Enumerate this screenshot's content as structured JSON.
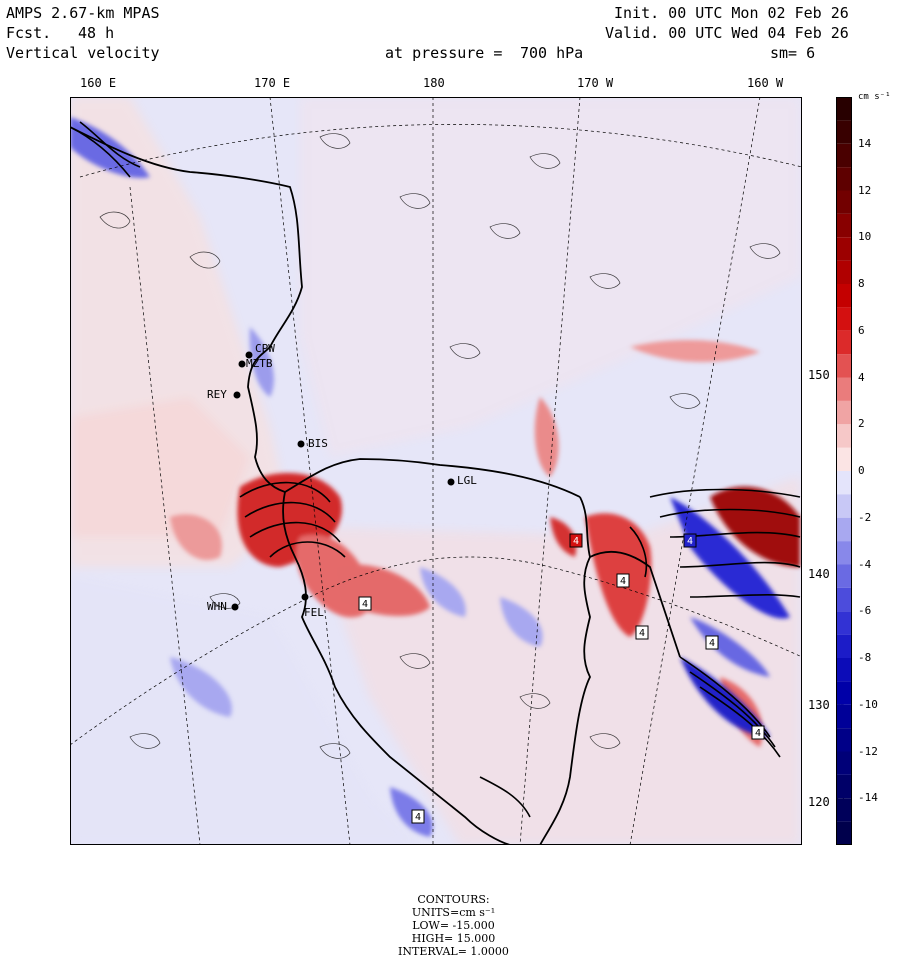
{
  "header": {
    "model": "AMPS 2.67-km MPAS",
    "fcst_label": "Fcst.",
    "fcst_value": "48 h",
    "field": "Vertical velocity",
    "level_label": "at pressure =",
    "level_value": "700 hPa",
    "init": "Init. 00 UTC Mon 02 Feb 26",
    "valid": "Valid. 00 UTC Wed 04 Feb 26",
    "smooth": "sm= 6"
  },
  "longitude_labels": [
    "160 E",
    "170 E",
    "180",
    "170 W",
    "160 W"
  ],
  "latitude_labels": [
    "150 W",
    "140 W",
    "130 W",
    "120 W"
  ],
  "stations": [
    {
      "id": "CPW"
    },
    {
      "id": "MZTB"
    },
    {
      "id": "REY"
    },
    {
      "id": "BIS"
    },
    {
      "id": "LGL"
    },
    {
      "id": "WHN"
    },
    {
      "id": "FEL"
    }
  ],
  "colorbar": {
    "units": "cm s⁻¹",
    "ticks": [
      14,
      12,
      10,
      8,
      6,
      4,
      2,
      0,
      -2,
      -4,
      -6,
      -8,
      -10,
      -12,
      -14
    ],
    "min": -16,
    "max": 16,
    "colors_positive": [
      "#fbe4e4",
      "#f6c8c8",
      "#f0a4a4",
      "#ea7c7c",
      "#e35252",
      "#dc2a2a",
      "#d41010",
      "#c40000",
      "#b00000",
      "#9c0000",
      "#880000",
      "#720000",
      "#5e0000",
      "#4a0000",
      "#380000",
      "#280000"
    ],
    "colors_negative": [
      "#e4e4fb",
      "#c8c8f6",
      "#a8a8f0",
      "#8888ea",
      "#6a6ae3",
      "#4c4cdc",
      "#3232d4",
      "#1c1cc8",
      "#0c0cb8",
      "#0000a8",
      "#000098",
      "#000088",
      "#000078",
      "#000068",
      "#00005a",
      "#00004c"
    ]
  },
  "footer": {
    "contours": "CONTOURS:",
    "units": "UNITS=cm s⁻¹",
    "low": "LOW= -15.000",
    "high": "HIGH= 15.000",
    "interval": "INTERVAL= 1.0000"
  },
  "high_low_marks": [
    "4",
    "4",
    "4",
    "4",
    "4",
    "4",
    "4",
    "4"
  ]
}
